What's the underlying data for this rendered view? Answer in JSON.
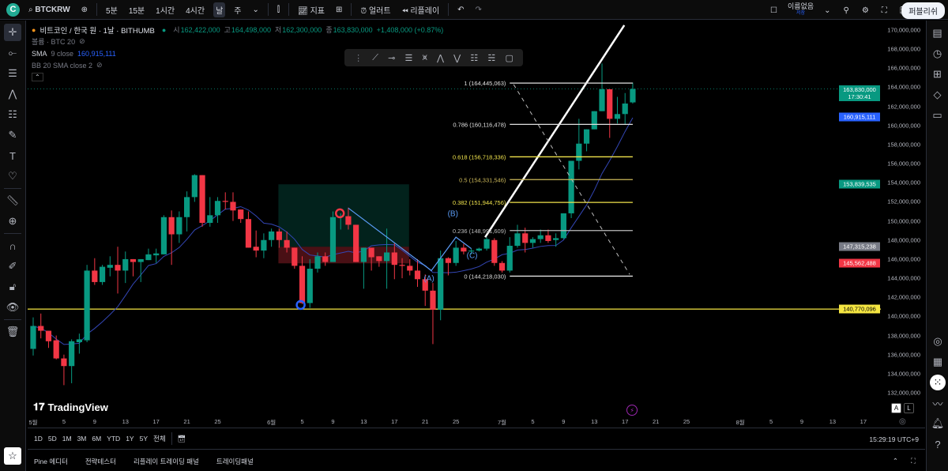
{
  "topbar": {
    "symbol": "BTCKRW",
    "intervals": [
      "5분",
      "15분",
      "1시간",
      "4시간",
      "날",
      "주"
    ],
    "active_interval": "날",
    "indicators_label": "지표",
    "alert_label": "얼러트",
    "replay_label": "리플레이",
    "layout_name": "이름없음",
    "layout_status": "저장",
    "publish_label": "퍼블리쉬"
  },
  "legend": {
    "title": "비트코인 / 한국 원 · 1날 · BITHUMB",
    "o_label": "시",
    "open": "162,422,000",
    "h_label": "고",
    "high": "164,498,000",
    "l_label": "저",
    "low": "162,300,000",
    "c_label": "종",
    "close": "163,830,000",
    "change": "+1,408,000 (+0.87%)",
    "volume": "볼륨 · BTC 20",
    "sma_name": "SMA",
    "sma_params": "9 close",
    "sma_value": "160,915,111",
    "bb": "BB 20 SMA close 2"
  },
  "price_axis": {
    "ticks": [
      "170,000,000",
      "168,000,000",
      "166,000,000",
      "164,000,000",
      "162,000,000",
      "160,000,000",
      "158,000,000",
      "156,000,000",
      "154,000,000",
      "152,000,000",
      "150,000,000",
      "148,000,000",
      "146,000,000",
      "144,000,000",
      "142,000,000",
      "140,000,000",
      "138,000,000",
      "136,000,000",
      "134,000,000",
      "132,000,000"
    ],
    "tick_values": [
      170000000,
      168000000,
      166000000,
      164000000,
      162000000,
      160000000,
      158000000,
      156000000,
      154000000,
      152000000,
      150000000,
      148000000,
      146000000,
      144000000,
      142000000,
      140000000,
      138000000,
      136000000,
      134000000,
      132000000
    ],
    "badges": [
      {
        "label": "163,830,000",
        "sub": "17:30:41",
        "value": 163830000,
        "color": "#089981"
      },
      {
        "label": "160,915,111",
        "value": 160915111,
        "color": "#2962ff"
      },
      {
        "label": "153,839,535",
        "value": 153839535,
        "color": "#089981"
      },
      {
        "label": "147,315,238",
        "value": 147315238,
        "color": "#787b86"
      },
      {
        "label": "145,562,488",
        "value": 145562488,
        "color": "#f23645"
      },
      {
        "label": "140,770,096",
        "value": 140770096,
        "color": "#f5e642"
      }
    ]
  },
  "time_axis": [
    "5월",
    "5",
    "9",
    "13",
    "17",
    "21",
    "25",
    "6월",
    "5",
    "9",
    "13",
    "17",
    "21",
    "25",
    "7월",
    "5",
    "9",
    "13",
    "17",
    "21",
    "25",
    "8월",
    "5",
    "9",
    "13",
    "17"
  ],
  "fib_levels": [
    {
      "label": "1 (164,445,063)",
      "value": 164445063,
      "color": "#e0e0e0"
    },
    {
      "label": "0.786 (160,116,478)",
      "value": 160116478,
      "color": "#e0e0e0"
    },
    {
      "label": "0.618 (156,718,336)",
      "value": 156718336,
      "color": "#f0e34c"
    },
    {
      "label": "0.5 (154,331,546)",
      "value": 154331546,
      "color": "#cdb95a"
    },
    {
      "label": "0.382 (151,944,756)",
      "value": 151944756,
      "color": "#f0e34c"
    },
    {
      "label": "0.236 (148,991,609)",
      "value": 148991609,
      "color": "#bdbdbd"
    },
    {
      "label": "0 (144,218,030)",
      "value": 144218030,
      "color": "#e0e0e0"
    }
  ],
  "wave_labels": [
    "(A)",
    "(B)",
    "(C)"
  ],
  "horizontal_line": 140770096,
  "colors": {
    "up": "#089981",
    "down": "#f23645",
    "sma": "#3346b5",
    "wave": "#5b9cf6"
  },
  "candles_ohlc": [
    [
      136600000,
      139900000,
      135900000,
      139000000
    ],
    [
      139000000,
      140300000,
      137700000,
      138500000
    ],
    [
      138500000,
      138500000,
      136700000,
      137400000
    ],
    [
      137500000,
      138000000,
      135500000,
      135600000
    ],
    [
      135600000,
      136000000,
      132800000,
      134800000
    ],
    [
      134800000,
      137600000,
      133000000,
      137400000
    ],
    [
      137300000,
      138200000,
      136100000,
      137600000
    ],
    [
      137500000,
      145400000,
      137300000,
      144800000
    ],
    [
      144800000,
      146100000,
      143300000,
      143600000
    ],
    [
      143600000,
      145400000,
      143300000,
      145200000
    ],
    [
      145100000,
      146300000,
      144200000,
      145400000
    ],
    [
      145400000,
      147300000,
      142400000,
      144800000
    ],
    [
      144800000,
      146800000,
      143500000,
      146000000
    ],
    [
      146000000,
      146000000,
      144200000,
      145700000
    ],
    [
      145700000,
      146000000,
      143600000,
      146000000
    ],
    [
      145900000,
      147100000,
      145900000,
      146500000
    ],
    [
      146400000,
      147100000,
      145600000,
      146600000
    ],
    [
      146500000,
      150600000,
      146500000,
      150400000
    ],
    [
      150400000,
      151100000,
      145400000,
      148600000
    ],
    [
      148600000,
      151000000,
      147700000,
      150400000
    ],
    [
      150400000,
      153100000,
      148900000,
      152500000
    ],
    [
      152500000,
      154900000,
      152000000,
      154800000
    ],
    [
      154800000,
      154800000,
      149400000,
      149800000
    ],
    [
      149800000,
      152500000,
      149400000,
      150600000
    ],
    [
      150600000,
      152500000,
      149800000,
      152100000
    ],
    [
      152100000,
      153000000,
      151200000,
      152000000
    ],
    [
      152000000,
      153000000,
      150000000,
      151100000
    ],
    [
      151200000,
      151200000,
      149800000,
      150200000
    ],
    [
      150200000,
      151000000,
      147200000,
      147200000
    ],
    [
      147300000,
      149000000,
      146200000,
      146900000
    ],
    [
      146900000,
      148700000,
      146100000,
      148000000
    ],
    [
      148000000,
      149200000,
      147300000,
      148900000
    ],
    [
      148900000,
      149200000,
      147200000,
      148000000
    ],
    [
      148000000,
      148900000,
      146700000,
      147200000
    ],
    [
      147200000,
      147200000,
      145000000,
      145300000
    ],
    [
      145300000,
      146300000,
      141300000,
      141400000
    ],
    [
      141400000,
      146000000,
      140900000,
      145000000
    ],
    [
      145000000,
      146700000,
      144600000,
      146300000
    ],
    [
      146300000,
      146700000,
      145300000,
      145700000
    ],
    [
      145700000,
      151000000,
      145700000,
      150400000
    ],
    [
      150400000,
      150800000,
      149100000,
      150500000
    ],
    [
      150500000,
      151400000,
      149100000,
      149600000
    ],
    [
      149600000,
      149600000,
      145700000,
      145700000
    ],
    [
      145700000,
      147200000,
      142900000,
      147200000
    ],
    [
      147200000,
      147200000,
      144800000,
      146200000
    ],
    [
      146300000,
      146300000,
      145200000,
      145800000
    ],
    [
      145800000,
      149200000,
      142900000,
      146700000
    ],
    [
      146700000,
      147700000,
      143900000,
      145400000
    ],
    [
      145400000,
      146100000,
      144000000,
      145300000
    ],
    [
      145300000,
      146000000,
      144300000,
      144800000
    ],
    [
      144800000,
      146000000,
      143100000,
      143900000
    ],
    [
      143900000,
      144400000,
      141100000,
      142700000
    ],
    [
      142700000,
      143500000,
      137100000,
      140700000
    ],
    [
      140700000,
      146900000,
      139600000,
      146100000
    ],
    [
      146100000,
      146200000,
      144300000,
      145600000
    ],
    [
      145600000,
      147900000,
      145300000,
      147200000
    ],
    [
      147200000,
      147600000,
      146500000,
      146800000
    ],
    [
      146800000,
      147100000,
      146500000,
      146900000
    ],
    [
      146900000,
      147200000,
      146800000,
      147100000
    ],
    [
      147100000,
      148300000,
      146900000,
      148100000
    ],
    [
      148000000,
      148200000,
      145300000,
      145600000
    ],
    [
      145600000,
      145800000,
      144600000,
      144800000
    ],
    [
      144800000,
      148300000,
      144600000,
      147400000
    ],
    [
      147400000,
      149600000,
      147200000,
      148700000
    ],
    [
      148700000,
      149300000,
      146700000,
      147700000
    ],
    [
      147700000,
      148300000,
      147200000,
      148100000
    ],
    [
      148100000,
      149100000,
      147700000,
      148500000
    ],
    [
      148500000,
      149100000,
      147700000,
      147900000
    ],
    [
      148000000,
      148700000,
      147300000,
      148200000
    ],
    [
      148200000,
      150800000,
      148100000,
      150800000
    ],
    [
      150800000,
      156300000,
      150300000,
      156300000
    ],
    [
      156300000,
      160700000,
      155400000,
      158100000
    ],
    [
      158100000,
      159600000,
      157300000,
      159600000
    ],
    [
      159600000,
      161500000,
      159600000,
      161500000
    ],
    [
      161500000,
      166500000,
      161500000,
      163800000
    ],
    [
      163800000,
      163800000,
      158700000,
      160700000
    ],
    [
      160700000,
      163000000,
      160200000,
      161200000
    ],
    [
      161200000,
      163400000,
      160100000,
      162300000
    ],
    [
      162422000,
      164498000,
      162300000,
      163830000
    ]
  ],
  "range_bar": {
    "ranges": [
      "1D",
      "5D",
      "1M",
      "3M",
      "6M",
      "YTD",
      "1Y",
      "5Y",
      "전체"
    ],
    "clock": "15:29:19 UTC+9"
  },
  "bottom_tabs": [
    "Pine 에디터",
    "전략테스터",
    "리플레이 트레이딩 패널",
    "트레이딩패널"
  ],
  "brand": "TradingView",
  "scale_buttons": [
    "A",
    "L"
  ]
}
